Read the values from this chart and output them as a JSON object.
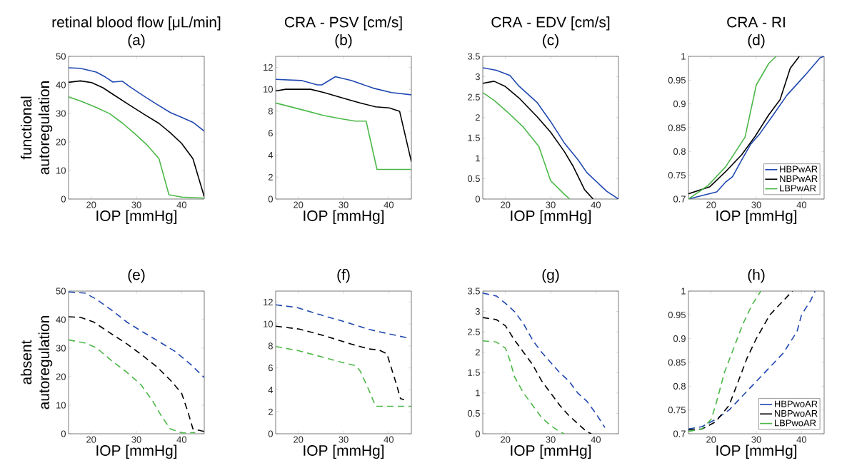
{
  "chart_data": [
    {
      "type": "line",
      "title": "retinal blood flow [μL/min]",
      "subtitle": "(a)",
      "xlabel": "IOP [mmHg]",
      "ylabel": "functional autoregulation",
      "xlim": [
        15,
        45
      ],
      "xticks": [
        20,
        30,
        40
      ],
      "ylim": [
        0,
        50
      ],
      "yticks": [
        0,
        10,
        20,
        30,
        40,
        50
      ],
      "line_style": "solid",
      "series": [
        {
          "color": "#2048b0",
          "x": [
            15,
            17.6,
            21.1,
            23.1,
            24.8,
            26.9,
            28.5,
            32,
            34.5,
            37.5,
            40,
            42.5,
            45
          ],
          "values": [
            46.0,
            45.8,
            44.5,
            42.8,
            41.0,
            41.3,
            39.4,
            35.7,
            33.2,
            30.3,
            28.6,
            26.9,
            23.8
          ]
        },
        {
          "color": "#000000",
          "x": [
            15,
            17.6,
            20.1,
            22.6,
            25,
            28.5,
            32,
            35,
            37.5,
            40,
            42.5,
            45
          ],
          "values": [
            40.9,
            41.4,
            40.8,
            39.0,
            36.5,
            32.9,
            29.4,
            26.5,
            23.2,
            19.5,
            14.1,
            0.8
          ]
        },
        {
          "color": "#4cb848",
          "x": [
            15,
            17.6,
            21.1,
            24.1,
            27,
            30,
            32.5,
            35,
            37.2,
            40,
            45
          ],
          "values": [
            35.8,
            34.4,
            32.1,
            29.9,
            26.5,
            22.4,
            18.7,
            14.1,
            1.5,
            0.7,
            0.3
          ]
        }
      ]
    },
    {
      "type": "line",
      "title": "CRA - PSV [cm/s]",
      "subtitle": "(b)",
      "xlabel": "IOP [mmHg]",
      "xlim": [
        15,
        45
      ],
      "xticks": [
        20,
        30,
        40
      ],
      "ylim": [
        0,
        13
      ],
      "yticks": [
        0,
        2,
        4,
        6,
        8,
        10,
        12
      ],
      "line_style": "solid",
      "series": [
        {
          "color": "#2048b0",
          "x": [
            15,
            20.7,
            24.2,
            25.2,
            28.2,
            31.7,
            36.6,
            40.6,
            45
          ],
          "values": [
            10.9,
            10.8,
            10.4,
            10.4,
            11.15,
            10.8,
            10.1,
            9.7,
            9.5
          ]
        },
        {
          "color": "#000000",
          "x": [
            15,
            17.2,
            22.7,
            25.7,
            30.7,
            34.2,
            37.1,
            40.1,
            42.4,
            45
          ],
          "values": [
            9.85,
            10.0,
            10.0,
            9.7,
            9.1,
            8.7,
            8.4,
            8.3,
            8.0,
            3.4
          ]
        },
        {
          "color": "#4cb848",
          "x": [
            15,
            20.7,
            25.7,
            29.7,
            32.6,
            35,
            37.4,
            45
          ],
          "values": [
            8.75,
            8.15,
            7.6,
            7.3,
            7.1,
            7.1,
            2.7,
            2.7
          ]
        }
      ]
    },
    {
      "type": "line",
      "title": "CRA - EDV [cm/s]",
      "subtitle": "(c)",
      "xlabel": "IOP [mmHg]",
      "xlim": [
        15,
        45
      ],
      "xticks": [
        20,
        30,
        40
      ],
      "ylim": [
        0,
        3.5
      ],
      "yticks": [
        0,
        0.5,
        1,
        1.5,
        2,
        2.5,
        3,
        3.5
      ],
      "line_style": "solid",
      "series": [
        {
          "color": "#2048b0",
          "x": [
            15,
            18,
            21,
            23,
            27,
            30,
            33,
            36,
            38,
            42.4,
            45
          ],
          "values": [
            3.22,
            3.16,
            3.03,
            2.77,
            2.37,
            1.9,
            1.38,
            0.97,
            0.65,
            0.19,
            0
          ]
        },
        {
          "color": "#000000",
          "x": [
            15,
            17.5,
            20,
            23,
            27,
            30,
            33,
            35,
            37.5,
            39.4
          ],
          "values": [
            2.84,
            2.89,
            2.76,
            2.48,
            2.02,
            1.64,
            1.17,
            0.8,
            0.23,
            0
          ]
        },
        {
          "color": "#4cb848",
          "x": [
            15,
            17.5,
            20.5,
            24,
            27.4,
            30,
            33,
            34.25
          ],
          "values": [
            2.61,
            2.42,
            2.13,
            1.76,
            1.29,
            0.45,
            0.12,
            0
          ]
        }
      ]
    },
    {
      "type": "line",
      "title": "CRA - RI",
      "subtitle": "(d)",
      "xlabel": "IOP [mmHg]",
      "xlim": [
        15,
        45
      ],
      "xticks": [
        20,
        30,
        40
      ],
      "ylim": [
        0.7,
        1
      ],
      "yticks": [
        0.7,
        0.75,
        0.8,
        0.85,
        0.9,
        0.95,
        1
      ],
      "line_style": "solid",
      "legend": "bottom right",
      "series": [
        {
          "name": "HBPwAR",
          "color": "#2048b0",
          "x": [
            15,
            18.25,
            21.25,
            23.25,
            24.75,
            26.75,
            28.75,
            30.75,
            33.75,
            36.75,
            40.75,
            44.1,
            45
          ],
          "values": [
            0.7,
            0.708,
            0.715,
            0.736,
            0.747,
            0.782,
            0.815,
            0.837,
            0.877,
            0.918,
            0.96,
            0.997,
            1
          ]
        },
        {
          "name": "NBPwAR",
          "color": "#000000",
          "x": [
            15,
            19.75,
            23.25,
            26.75,
            29.75,
            32.75,
            35.25,
            37.5,
            39.5
          ],
          "values": [
            0.711,
            0.726,
            0.758,
            0.793,
            0.832,
            0.877,
            0.909,
            0.975,
            1
          ]
        },
        {
          "name": "LBPwAR",
          "color": "#4cb848",
          "x": [
            15,
            19.25,
            23.25,
            27.5,
            30,
            32.75,
            34.4
          ],
          "values": [
            0.7,
            0.728,
            0.768,
            0.83,
            0.94,
            0.985,
            1
          ]
        }
      ]
    },
    {
      "type": "line",
      "title": "(e)",
      "xlabel": "IOP [mmHg]",
      "ylabel": "absent autoregulation",
      "xlim": [
        15,
        45
      ],
      "xticks": [
        20,
        30,
        40
      ],
      "ylim": [
        0,
        50
      ],
      "yticks": [
        0,
        10,
        20,
        30,
        40,
        50
      ],
      "line_style": "dashed",
      "series": [
        {
          "color": "#2048b0",
          "x": [
            15,
            18.6,
            21.1,
            24.6,
            28,
            31.6,
            35,
            38.5,
            42,
            45
          ],
          "values": [
            49.7,
            49.3,
            47.2,
            43.2,
            39.0,
            35.5,
            32.3,
            28.9,
            24.3,
            19.7
          ]
        },
        {
          "color": "#000000",
          "x": [
            15,
            17.6,
            20.6,
            24.1,
            27.6,
            31,
            34.5,
            37.5,
            40,
            41.5,
            42.5,
            45
          ],
          "values": [
            41.0,
            40.8,
            39.1,
            35.4,
            31.8,
            27.9,
            23.5,
            18.8,
            14.2,
            7.1,
            1.7,
            0.8
          ]
        },
        {
          "color": "#4cb848",
          "x": [
            15,
            18.6,
            21.1,
            24.6,
            28,
            31,
            33.5,
            35.5,
            37.5,
            40,
            43
          ],
          "values": [
            32.9,
            31.8,
            30.2,
            25.5,
            21.4,
            17.2,
            11.7,
            6.3,
            1.7,
            0.3,
            0.4
          ]
        }
      ]
    },
    {
      "type": "line",
      "title": "(f)",
      "xlabel": "IOP [mmHg]",
      "xlim": [
        15,
        45
      ],
      "xticks": [
        20,
        30,
        40
      ],
      "ylim": [
        0,
        13
      ],
      "yticks": [
        0,
        2,
        4,
        6,
        8,
        10,
        12
      ],
      "line_style": "dashed",
      "series": [
        {
          "color": "#2048b0",
          "x": [
            15,
            19.7,
            25.2,
            30.7,
            35.7,
            40.6,
            44
          ],
          "values": [
            11.75,
            11.5,
            10.8,
            10.15,
            9.5,
            9.05,
            8.75
          ]
        },
        {
          "color": "#000000",
          "x": [
            15,
            20.2,
            25.7,
            31.7,
            35.6,
            37.9,
            39.6,
            41.6,
            42.6,
            43.4
          ],
          "values": [
            9.8,
            9.54,
            8.94,
            8.17,
            7.73,
            7.62,
            7.28,
            4.64,
            3.2,
            3.1
          ]
        },
        {
          "color": "#4cb848",
          "x": [
            15,
            19.7,
            24.7,
            29.7,
            32.7,
            33.7,
            35.6,
            37.1,
            45
          ],
          "values": [
            7.95,
            7.6,
            7.06,
            6.5,
            6.2,
            5.7,
            4.0,
            2.5,
            2.5
          ]
        }
      ]
    },
    {
      "type": "line",
      "title": "(g)",
      "xlabel": "IOP [mmHg]",
      "xlim": [
        15,
        45
      ],
      "xticks": [
        20,
        30,
        40
      ],
      "ylim": [
        0,
        3.5
      ],
      "yticks": [
        0,
        0.5,
        1,
        1.5,
        2,
        2.5,
        3,
        3.5
      ],
      "line_style": "dashed",
      "series": [
        {
          "color": "#2048b0",
          "x": [
            15,
            18,
            20,
            22,
            24,
            26,
            28,
            30,
            32,
            34,
            36,
            38,
            40,
            42
          ],
          "values": [
            3.45,
            3.38,
            3.2,
            3.0,
            2.7,
            2.3,
            2.0,
            1.75,
            1.5,
            1.3,
            1.0,
            0.8,
            0.5,
            0.15
          ]
        },
        {
          "color": "#000000",
          "x": [
            15,
            18,
            20,
            22,
            24,
            26,
            28,
            30,
            32,
            34,
            36,
            38,
            39
          ],
          "values": [
            2.85,
            2.8,
            2.65,
            2.3,
            2.0,
            1.7,
            1.3,
            1.0,
            0.7,
            0.45,
            0.25,
            0.05,
            0
          ]
        },
        {
          "color": "#4cb848",
          "x": [
            15,
            18,
            20,
            21,
            22,
            24,
            26,
            28,
            30,
            32,
            33
          ],
          "values": [
            2.28,
            2.25,
            2.1,
            1.8,
            1.4,
            1.0,
            0.7,
            0.4,
            0.2,
            0.05,
            0
          ]
        }
      ]
    },
    {
      "type": "line",
      "title": "(h)",
      "xlabel": "IOP [mmHg]",
      "xlim": [
        15,
        45
      ],
      "xticks": [
        20,
        30,
        40
      ],
      "ylim": [
        0.7,
        1
      ],
      "yticks": [
        0.7,
        0.75,
        0.8,
        0.85,
        0.9,
        0.95,
        1
      ],
      "line_style": "dashed",
      "legend": "bottom right",
      "series": [
        {
          "name": "HBPwoAR",
          "color": "#2048b0",
          "x": [
            15,
            18,
            21,
            24,
            26,
            28,
            30,
            33,
            36,
            38,
            39,
            40,
            42,
            43
          ],
          "values": [
            0.71,
            0.715,
            0.73,
            0.75,
            0.77,
            0.79,
            0.81,
            0.84,
            0.87,
            0.9,
            0.915,
            0.95,
            0.98,
            1
          ]
        },
        {
          "name": "NBPwoAR",
          "color": "#000000",
          "x": [
            15,
            18,
            21,
            24,
            26,
            28,
            30,
            33,
            36,
            38
          ],
          "values": [
            0.708,
            0.71,
            0.725,
            0.76,
            0.81,
            0.86,
            0.9,
            0.95,
            0.98,
            1
          ]
        },
        {
          "name": "LBPwoAR",
          "color": "#4cb848",
          "x": [
            15,
            18,
            20,
            21,
            23,
            25,
            27,
            29,
            31
          ],
          "values": [
            0.705,
            0.71,
            0.73,
            0.76,
            0.83,
            0.88,
            0.93,
            0.97,
            1
          ]
        }
      ]
    }
  ]
}
